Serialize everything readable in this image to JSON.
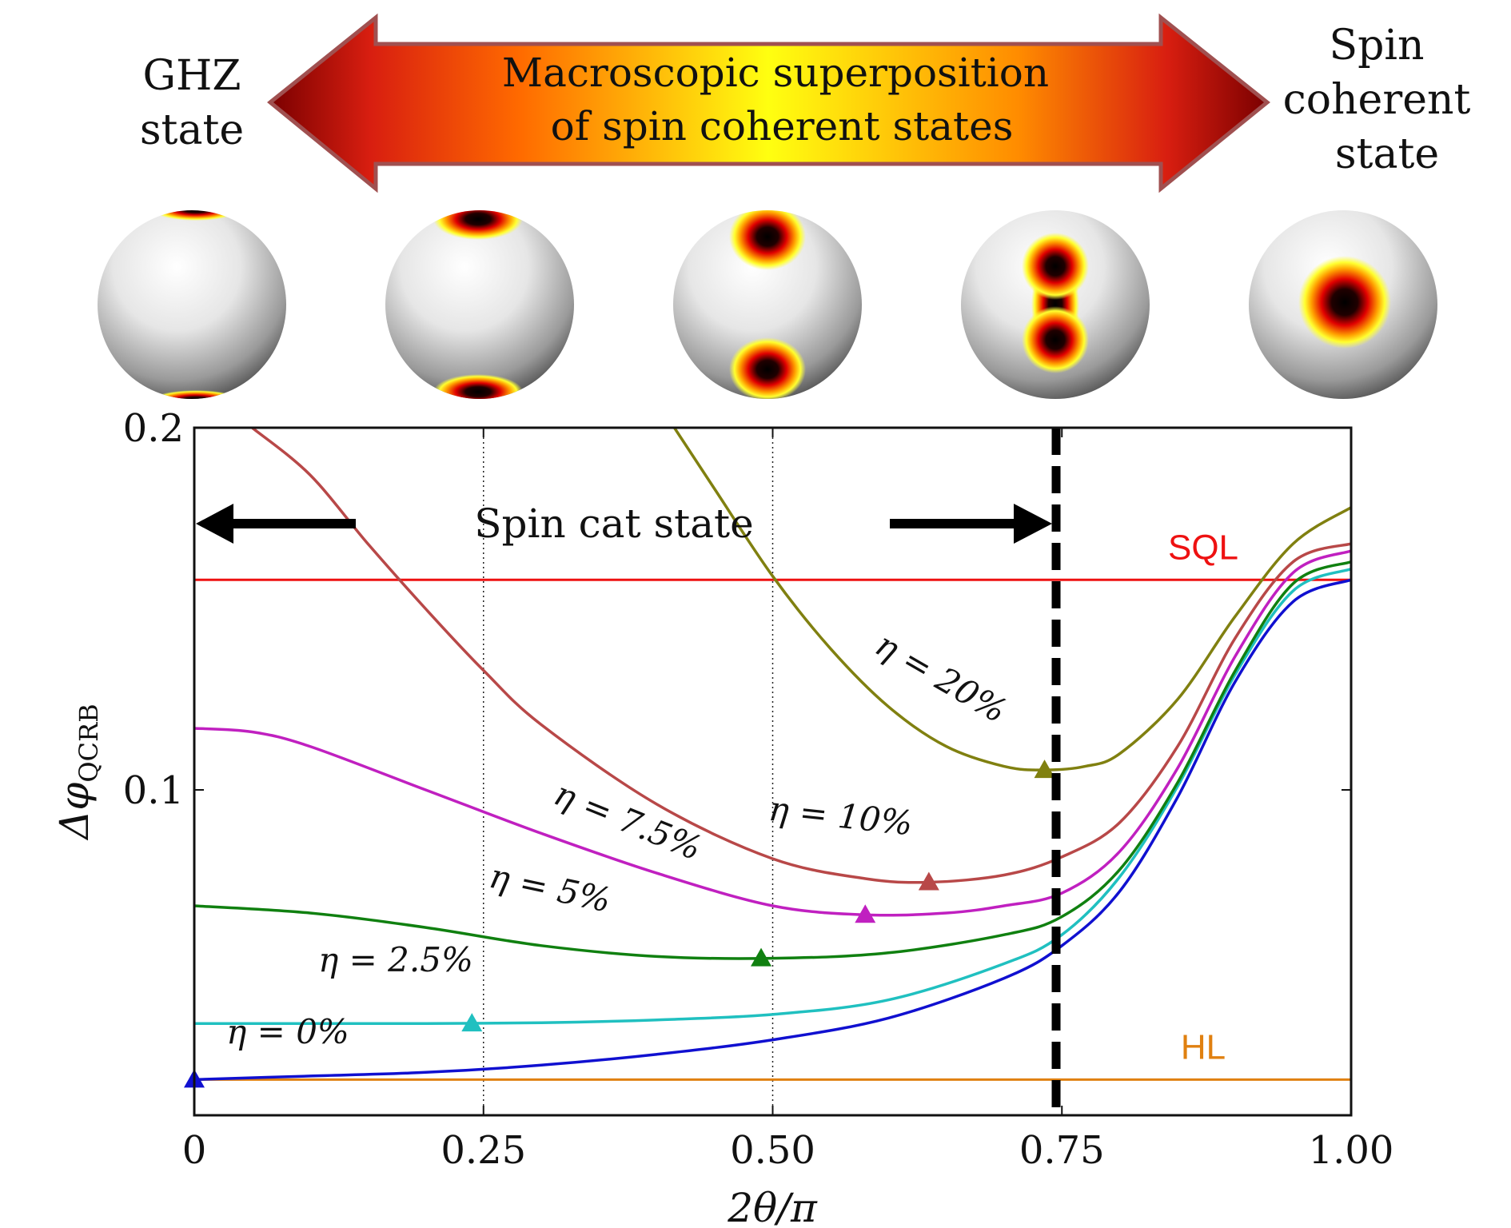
{
  "header": {
    "left_label_line1": "GHZ",
    "left_label_line2": "state",
    "right_label_line1": "Spin",
    "right_label_line2": "coherent",
    "right_label_line3": "state",
    "arrow_text_line1": "Macroscopic superposition",
    "arrow_text_line2": "of spin coherent states"
  },
  "spheres": [
    {
      "name": "sphere-ghz"
    },
    {
      "name": "sphere-cat-1"
    },
    {
      "name": "sphere-cat-2"
    },
    {
      "name": "sphere-cat-3"
    },
    {
      "name": "sphere-coherent"
    }
  ],
  "colors": {
    "arrow_dark": "#8b0000",
    "arrow_red": "#e02010",
    "arrow_orange": "#ff8c00",
    "arrow_yellow": "#ffff00",
    "arrow_border": "#a05050",
    "eta0": "#1010d0",
    "eta2_5": "#20c0c0",
    "eta5": "#108010",
    "eta7_5": "#c020c0",
    "eta10": "#b84848",
    "eta20": "#808010",
    "sql": "#ee1111",
    "hl": "#e08010"
  },
  "chart_data": {
    "type": "line",
    "xlabel": "2θ/π",
    "ylabel_main": "Δφ",
    "ylabel_sub": "QCRB",
    "xlim": [
      0,
      1
    ],
    "ylim": [
      0.01,
      0.2
    ],
    "x_ticks": [
      "0",
      "0.25",
      "0.50",
      "0.75",
      "1.00"
    ],
    "x_tick_values": [
      0,
      0.25,
      0.5,
      0.75,
      1.0
    ],
    "y_ticks": [
      "0.1",
      "0.2"
    ],
    "y_tick_values": [
      0.1,
      0.2
    ],
    "vertical_guides": [
      0.25,
      0.5
    ],
    "spin_cat_boundary": 0.745,
    "spin_cat_label": "Spin cat state",
    "reference_lines": [
      {
        "name": "SQL",
        "y": 0.158
      },
      {
        "name": "HL",
        "y": 0.02
      }
    ],
    "series": [
      {
        "name": "η = 0%",
        "color_key": "eta0",
        "x": [
          0,
          0.1,
          0.2,
          0.3,
          0.4,
          0.5,
          0.6,
          0.7,
          0.75,
          0.8,
          0.85,
          0.9,
          0.95,
          1.0
        ],
        "y": [
          0.02,
          0.021,
          0.022,
          0.024,
          0.027,
          0.031,
          0.037,
          0.048,
          0.057,
          0.072,
          0.098,
          0.13,
          0.152,
          0.158
        ],
        "min_marker": [
          0.0,
          0.02
        ]
      },
      {
        "name": "η = 2.5%",
        "color_key": "eta2_5",
        "x": [
          0,
          0.1,
          0.2,
          0.3,
          0.4,
          0.5,
          0.6,
          0.7,
          0.75,
          0.8,
          0.85,
          0.9,
          0.95,
          1.0
        ],
        "y": [
          0.0355,
          0.0355,
          0.0355,
          0.0357,
          0.0365,
          0.038,
          0.042,
          0.052,
          0.06,
          0.076,
          0.101,
          0.132,
          0.155,
          0.161
        ],
        "min_marker": [
          0.24,
          0.0355
        ]
      },
      {
        "name": "η = 5%",
        "color_key": "eta5",
        "x": [
          0,
          0.1,
          0.2,
          0.3,
          0.4,
          0.5,
          0.6,
          0.7,
          0.75,
          0.8,
          0.85,
          0.9,
          0.95,
          1.0
        ],
        "y": [
          0.068,
          0.066,
          0.062,
          0.057,
          0.054,
          0.0535,
          0.055,
          0.06,
          0.065,
          0.078,
          0.102,
          0.133,
          0.157,
          0.163
        ],
        "min_marker": [
          0.49,
          0.0535
        ]
      },
      {
        "name": "η = 7.5%",
        "color_key": "eta7_5",
        "x": [
          0,
          0.05,
          0.1,
          0.2,
          0.3,
          0.4,
          0.5,
          0.58,
          0.65,
          0.7,
          0.75,
          0.8,
          0.85,
          0.9,
          0.95,
          1.0
        ],
        "y": [
          0.117,
          0.116,
          0.112,
          0.1,
          0.088,
          0.077,
          0.068,
          0.0655,
          0.066,
          0.068,
          0.0715,
          0.083,
          0.106,
          0.137,
          0.16,
          0.166
        ],
        "min_marker": [
          0.58,
          0.0655
        ]
      },
      {
        "name": "η = 10%",
        "color_key": "eta10",
        "x": [
          0.05,
          0.1,
          0.15,
          0.2,
          0.25,
          0.3,
          0.4,
          0.5,
          0.58,
          0.635,
          0.7,
          0.75,
          0.8,
          0.85,
          0.9,
          0.95,
          1.0
        ],
        "y": [
          0.2,
          0.187,
          0.168,
          0.15,
          0.133,
          0.118,
          0.096,
          0.081,
          0.0755,
          0.0745,
          0.0765,
          0.0815,
          0.091,
          0.112,
          0.142,
          0.163,
          0.168
        ],
        "min_marker": [
          0.635,
          0.0745
        ]
      },
      {
        "name": "η = 20%",
        "color_key": "eta20",
        "x": [
          0.415,
          0.45,
          0.5,
          0.55,
          0.6,
          0.65,
          0.7,
          0.735,
          0.77,
          0.8,
          0.85,
          0.9,
          0.95,
          1.0
        ],
        "y": [
          0.2,
          0.183,
          0.159,
          0.139,
          0.123,
          0.112,
          0.1065,
          0.1055,
          0.1065,
          0.11,
          0.125,
          0.148,
          0.168,
          0.178
        ],
        "min_marker": [
          0.735,
          0.1055
        ]
      }
    ],
    "series_labels": [
      {
        "text": "η = 0%",
        "series": "eta0"
      },
      {
        "text": "η = 2.5%",
        "series": "eta2_5"
      },
      {
        "text": "η = 5%",
        "series": "eta5"
      },
      {
        "text": "η = 7.5%",
        "series": "eta7_5"
      },
      {
        "text": "η = 10%",
        "series": "eta10"
      },
      {
        "text": "η = 20%",
        "series": "eta20"
      }
    ]
  }
}
